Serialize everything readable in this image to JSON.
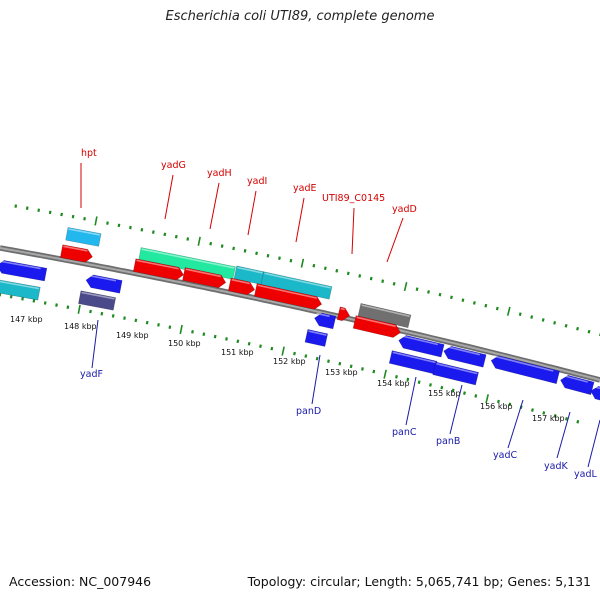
{
  "title": "Escherichia coli UTI89, complete genome",
  "footer": {
    "accession": "Accession: NC_007946",
    "summary": "Topology: circular; Length: 5,065,741 bp; Genes: 5,131"
  },
  "colors": {
    "backbone": "#8a8a8a",
    "tick": "#1f8a1f",
    "forward_label": "#d40000",
    "reverse_label": "#1a1aaa",
    "red": "#ee0000",
    "blue": "#1a1aee",
    "cyan": "#1ab8c8",
    "skyblue": "#22b8ee",
    "green": "#22e8a0",
    "navy": "#4a4a8a",
    "gray": "#707070"
  },
  "kbp_labels": [
    "147 kbp",
    "148 kbp",
    "149 kbp",
    "150 kbp",
    "151 kbp",
    "152 kbp",
    "153 kbp",
    "154 kbp",
    "155 kbp",
    "156 kbp",
    "157 kbp"
  ],
  "forward_gene_labels": [
    "hpt",
    "yadG",
    "yadH",
    "yadI",
    "yadE",
    "UTI89_C0145",
    "yadD"
  ],
  "reverse_gene_labels": [
    "yadF",
    "panD",
    "panC",
    "panB",
    "yadC",
    "yadK",
    "yadL"
  ]
}
